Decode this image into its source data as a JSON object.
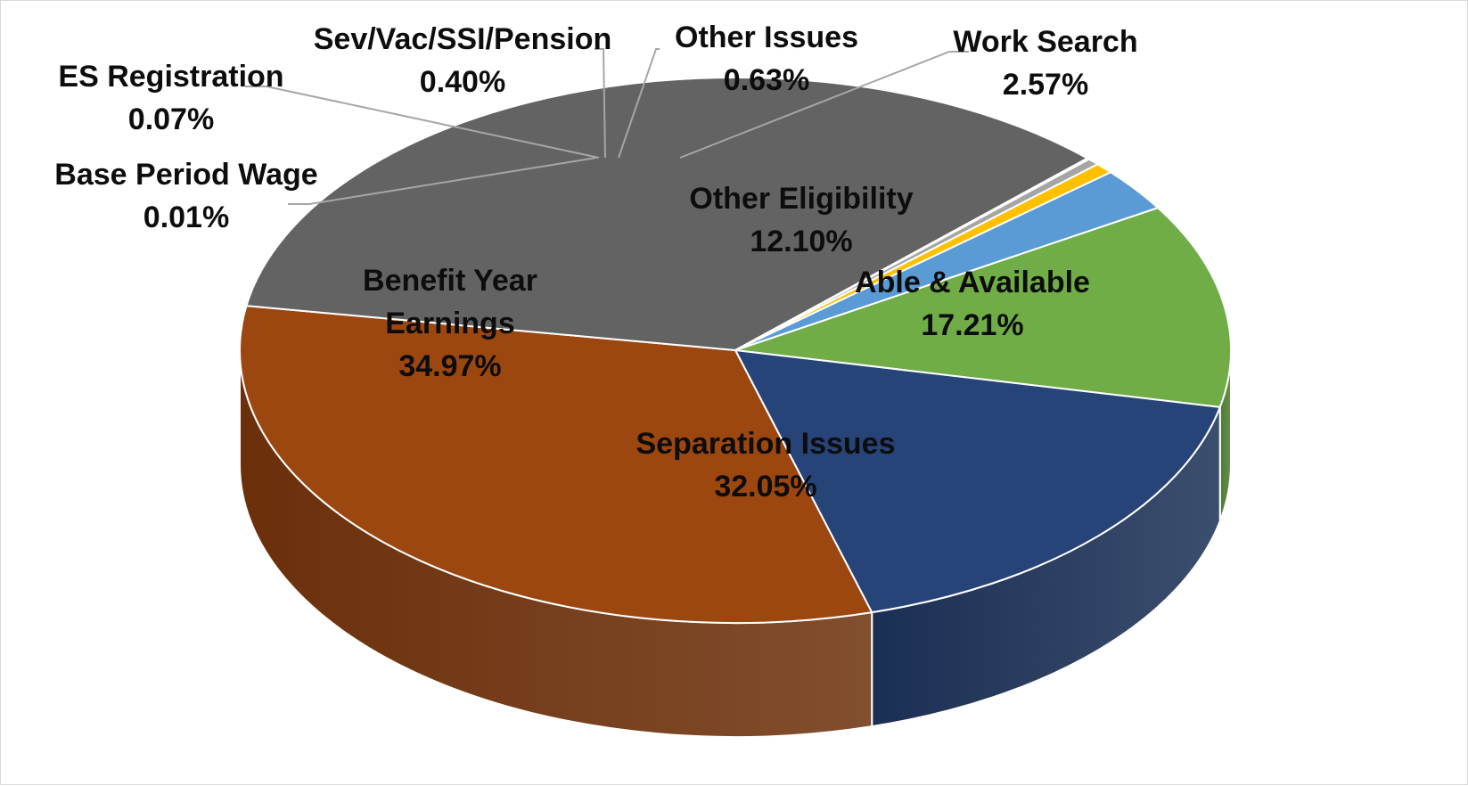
{
  "chart_data": {
    "type": "pie",
    "variant": "3d",
    "title": "",
    "legend": "none",
    "slices": [
      {
        "name": "Other Eligibility",
        "value": 12.1,
        "label": "12.10%",
        "color": "#70ad47",
        "side_color": "#4e7a31"
      },
      {
        "name": "Able & Available",
        "value": 17.21,
        "label": "17.21%",
        "color": "#264478",
        "side_color": "#1a2f54"
      },
      {
        "name": "Separation Issues",
        "value": 32.05,
        "label": "32.05%",
        "color": "#9c4710",
        "side_color": "#6b2f0a"
      },
      {
        "name": "Benefit Year Earnings",
        "value": 34.97,
        "label": "34.97%",
        "color": "#636363",
        "side_color": "#474747"
      },
      {
        "name": "Base Period Wage",
        "value": 0.01,
        "label": "0.01%",
        "color": "#997300",
        "side_color": "#6b5000"
      },
      {
        "name": "ES Registration",
        "value": 0.07,
        "label": "0.07%",
        "color": "#255e91",
        "side_color": "#1a4266"
      },
      {
        "name": "Sev/Vac/SSI/Pension",
        "value": 0.4,
        "label": "0.40%",
        "color": "#a5a5a5",
        "side_color": "#777777"
      },
      {
        "name": "Other Issues",
        "value": 0.63,
        "label": "0.63%",
        "color": "#ffc000",
        "side_color": "#b38600"
      },
      {
        "name": "Work Search",
        "value": 2.57,
        "label": "2.57%",
        "color": "#5b9bd5",
        "side_color": "#3f6f99"
      }
    ]
  }
}
